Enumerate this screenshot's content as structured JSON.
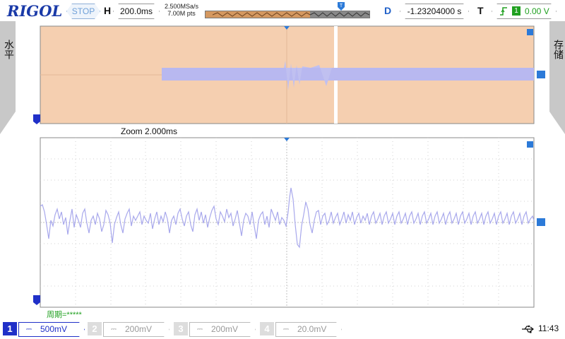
{
  "header": {
    "logo": "RIGOL",
    "run_state": "STOP",
    "horizontal_label": "H",
    "timebase": "200.0ms",
    "sample_rate": "2.500MSa/s",
    "memory_depth": "7.00M pts",
    "delay_label": "D",
    "delay_value": "-1.23204000 s",
    "trigger_label": "T",
    "trigger_source": "1",
    "trigger_level": "0.00 V"
  },
  "side": {
    "left_label": "水平",
    "right_label": "存储"
  },
  "zoom": {
    "label": "Zoom  2.000ms"
  },
  "measurement": {
    "period": "周期=*****"
  },
  "channels": [
    {
      "number": "1",
      "coupling": "⎓",
      "scale": "500mV",
      "active": true
    },
    {
      "number": "2",
      "coupling": "⎓",
      "scale": "200mV",
      "active": false
    },
    {
      "number": "3",
      "coupling": "⎓",
      "scale": "200mV",
      "active": false
    },
    {
      "number": "4",
      "coupling": "⎓",
      "scale": "20.0mV",
      "active": false
    }
  ],
  "status": {
    "usb_icon": "usb-icon",
    "time": "11:43"
  },
  "colors": {
    "brand": "#1a3aa8",
    "overview_bg": "#f5cfb0",
    "trace": "#b0b0f0",
    "channel1": "#2030c8",
    "trigger_marker": "#2c7ad8",
    "measurement": "#20a020"
  }
}
